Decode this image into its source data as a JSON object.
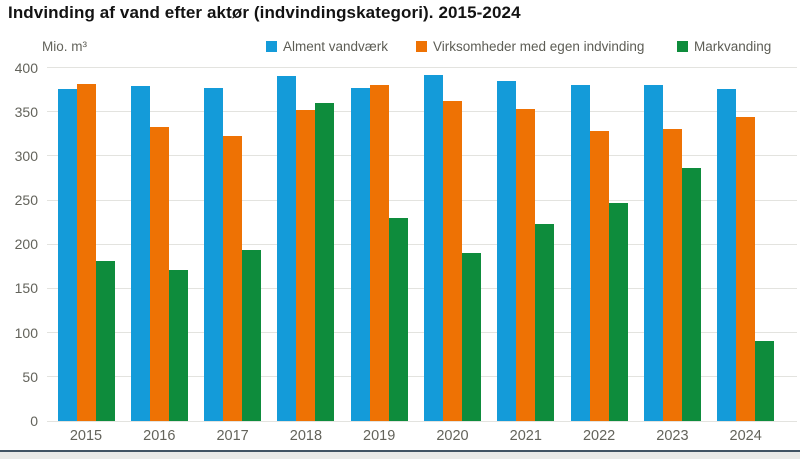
{
  "header": {
    "title": "Indvinding af vand efter aktør (indvindingskategori). 2015-2024"
  },
  "y_axis": {
    "unit": "Mio. m³"
  },
  "chart_data": {
    "type": "bar",
    "title": "Indvinding af vand efter aktør (indvindingskategori). 2015-2024",
    "ylabel": "Mio. m³",
    "xlabel": "",
    "categories": [
      "2015",
      "2016",
      "2017",
      "2018",
      "2019",
      "2020",
      "2021",
      "2022",
      "2023",
      "2024"
    ],
    "series": [
      {
        "name": "Alment vandværk",
        "key": "alment-vandvaerk",
        "color": "#149bd9",
        "values": [
          376,
          379,
          377,
          390,
          377,
          392,
          385,
          380,
          380,
          376
        ]
      },
      {
        "name": "Virksomheder med egen indvinding",
        "key": "virksomheder-med-egen-indvinding",
        "color": "#ee7204",
        "values": [
          381,
          333,
          322,
          352,
          380,
          362,
          353,
          328,
          330,
          344
        ]
      },
      {
        "name": "Markvanding",
        "key": "markvanding",
        "color": "#0e8c3c",
        "values": [
          181,
          171,
          194,
          360,
          230,
          190,
          223,
          247,
          286,
          91
        ]
      }
    ],
    "ylim": [
      0,
      400
    ],
    "ytick_step": 50,
    "grid": true,
    "legend_position": "top"
  },
  "colors": {
    "grid": "#e3e3df",
    "axis_text": "#63635b",
    "footer_line": "#415363",
    "footer_bg": "#e9e9e7"
  }
}
